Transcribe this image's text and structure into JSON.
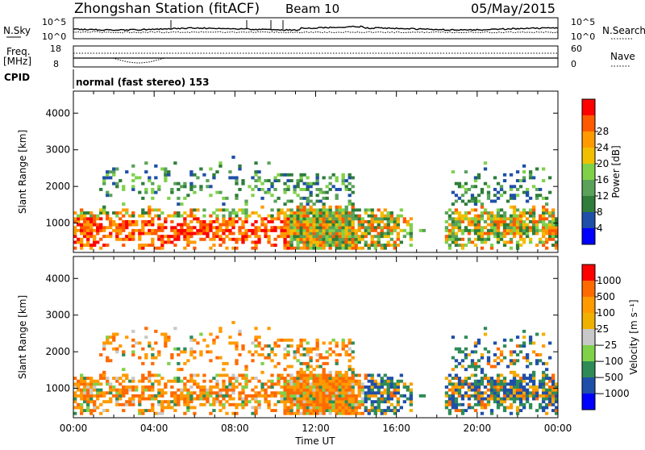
{
  "header": {
    "station": "Zhongshan Station (fitACF)",
    "beam": "Beam 10",
    "date": "05/May/2015"
  },
  "panels": {
    "nsky": {
      "left_label": "N.Sky",
      "right_label": "N.Search",
      "left_ticks": [
        "10^5",
        "10^0"
      ],
      "right_ticks": [
        "10^5",
        "10^0"
      ]
    },
    "freq": {
      "left_label_1": "Freq.",
      "left_label_2": "[MHz]",
      "right_label": "Nave",
      "left_ticks": [
        "18",
        "8"
      ],
      "right_ticks": [
        "60",
        "0"
      ]
    },
    "cpid": {
      "label": "CPID",
      "mode_text": "normal (fast stereo) 153"
    }
  },
  "colors": {
    "power": [
      "#0000ff",
      "#1f4fa8",
      "#2e7d3a",
      "#5aa25a",
      "#7fd14a",
      "#f0c000",
      "#ff9a00",
      "#ff5a00",
      "#ff0000"
    ],
    "velocity": [
      "#ff0000",
      "#ff6a00",
      "#ff9a00",
      "#f0b000",
      "#c8c8c8",
      "#7fd14a",
      "#2e8b57",
      "#1f4fa8",
      "#0000ff"
    ]
  },
  "chart_data": [
    {
      "type": "heatmap",
      "name": "power-panel",
      "xlabel": "",
      "ylabel": "Slant Range [km]",
      "x_ticks": [
        "00:00",
        "04:00",
        "08:00",
        "12:00",
        "16:00",
        "20:00",
        "00:00"
      ],
      "y_ticks": [
        "1000",
        "2000",
        "3000",
        "4000"
      ],
      "ylim": [
        200,
        4600
      ],
      "colorbar": {
        "label": "Power [dB]",
        "ticks": [
          "4",
          "8",
          "12",
          "16",
          "20",
          "24",
          "28"
        ]
      }
    },
    {
      "type": "heatmap",
      "name": "velocity-panel",
      "xlabel": "Time UT",
      "ylabel": "Slant Range [km]",
      "x_ticks": [
        "00:00",
        "04:00",
        "08:00",
        "12:00",
        "16:00",
        "20:00",
        "00:00"
      ],
      "y_ticks": [
        "1000",
        "2000",
        "3000",
        "4000"
      ],
      "ylim": [
        200,
        4600
      ],
      "colorbar": {
        "label": "Velocity [m s⁻¹]",
        "ticks": [
          "1000",
          "500",
          "100",
          "25",
          "−25",
          "−100",
          "−500",
          "−1000"
        ]
      }
    }
  ]
}
